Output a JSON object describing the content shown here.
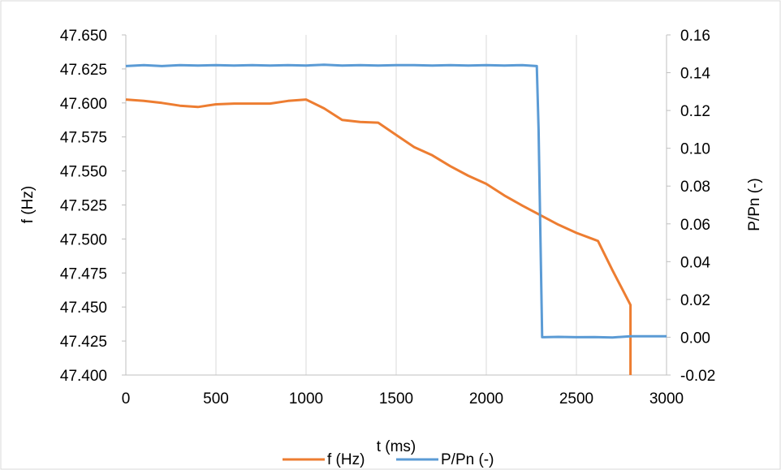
{
  "chart_data": {
    "type": "line",
    "xlabel": "t (ms)",
    "ylabel": "f (Hz)",
    "y2label": "P/Pn (-)",
    "xlim": [
      0,
      3000
    ],
    "ylim": [
      47.4,
      47.65
    ],
    "y2lim": [
      -0.02,
      0.16
    ],
    "x_ticks": [
      "0",
      "500",
      "1000",
      "1500",
      "2000",
      "2500",
      "3000"
    ],
    "y_ticks": [
      "47.400",
      "47.425",
      "47.450",
      "47.475",
      "47.500",
      "47.525",
      "47.550",
      "47.575",
      "47.600",
      "47.625",
      "47.650"
    ],
    "y2_ticks": [
      "-0.02",
      "0.00",
      "0.02",
      "0.04",
      "0.06",
      "0.08",
      "0.10",
      "0.12",
      "0.14",
      "0.16"
    ],
    "grid": "vertical",
    "legend_position": "bottom",
    "series": [
      {
        "name": "f (Hz)",
        "axis": "left",
        "color": "#ED7D31",
        "x": [
          0,
          100,
          200,
          300,
          400,
          500,
          600,
          700,
          800,
          900,
          1000,
          1100,
          1200,
          1300,
          1400,
          1500,
          1600,
          1700,
          1800,
          1900,
          2000,
          2100,
          2200,
          2300,
          2400,
          2500,
          2600,
          2620,
          2700,
          2800,
          2800,
          2800
        ],
        "y": [
          47.6025,
          47.6015,
          47.6,
          47.598,
          47.597,
          47.599,
          47.5995,
          47.5995,
          47.5995,
          47.6015,
          47.6025,
          47.596,
          47.5875,
          47.586,
          47.5855,
          47.5765,
          47.5675,
          47.5615,
          47.5535,
          47.5465,
          47.5405,
          47.532,
          47.5245,
          47.5175,
          47.5105,
          47.5045,
          47.4995,
          47.4985,
          47.477,
          47.4515,
          47.44,
          47.4
        ]
      },
      {
        "name": "P/Pn (-)",
        "axis": "right",
        "color": "#5B9BD5",
        "x": [
          0,
          100,
          200,
          300,
          400,
          500,
          600,
          700,
          800,
          900,
          1000,
          1100,
          1200,
          1300,
          1400,
          1500,
          1600,
          1700,
          1800,
          1900,
          2000,
          2100,
          2200,
          2280,
          2290,
          2310,
          2320,
          2400,
          2500,
          2600,
          2700,
          2800,
          2900,
          3000
        ],
        "y": [
          0.1435,
          0.144,
          0.1435,
          0.144,
          0.1438,
          0.144,
          0.1438,
          0.144,
          0.1438,
          0.144,
          0.1438,
          0.1442,
          0.1438,
          0.144,
          0.1438,
          0.144,
          0.144,
          0.1438,
          0.144,
          0.1438,
          0.144,
          0.1438,
          0.144,
          0.1435,
          0.11,
          0.0,
          0.0,
          0.0002,
          0.0,
          0.0001,
          -0.0001,
          0.0005,
          0.0005,
          0.0005
        ]
      }
    ]
  }
}
